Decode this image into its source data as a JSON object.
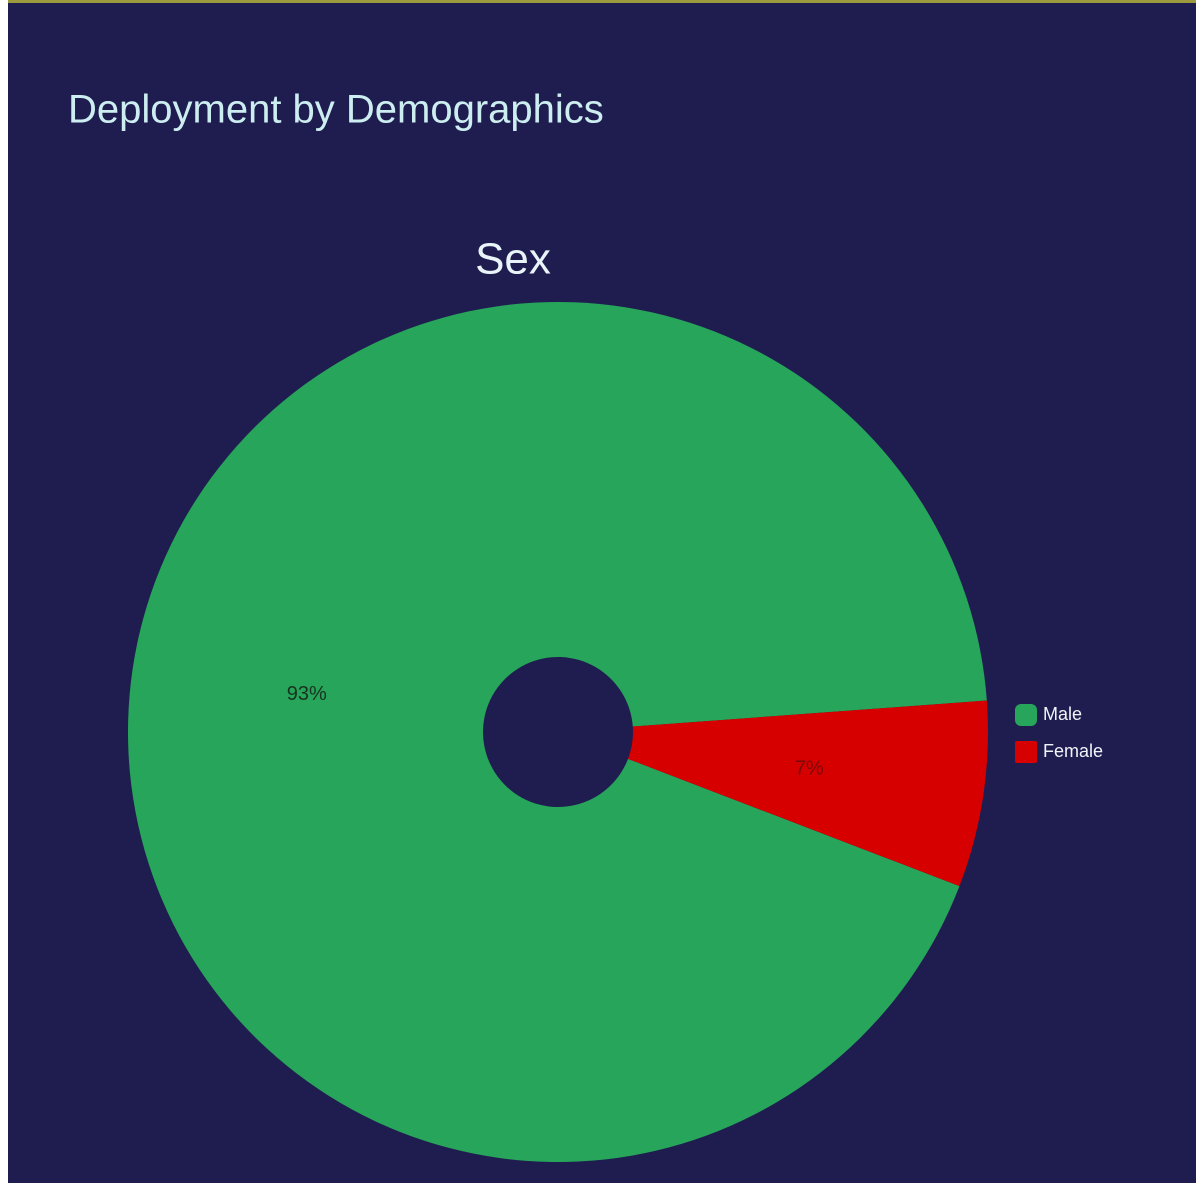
{
  "header": {
    "title": "Deployment by Demographics"
  },
  "chart_data": {
    "type": "pie",
    "title": "Sex",
    "categories": [
      "Male",
      "Female"
    ],
    "values": [
      93,
      7
    ],
    "value_labels": [
      "93%",
      "7%"
    ],
    "colors": [
      "#27a55a",
      "#d60000"
    ],
    "donut": true,
    "legend": "right"
  }
}
